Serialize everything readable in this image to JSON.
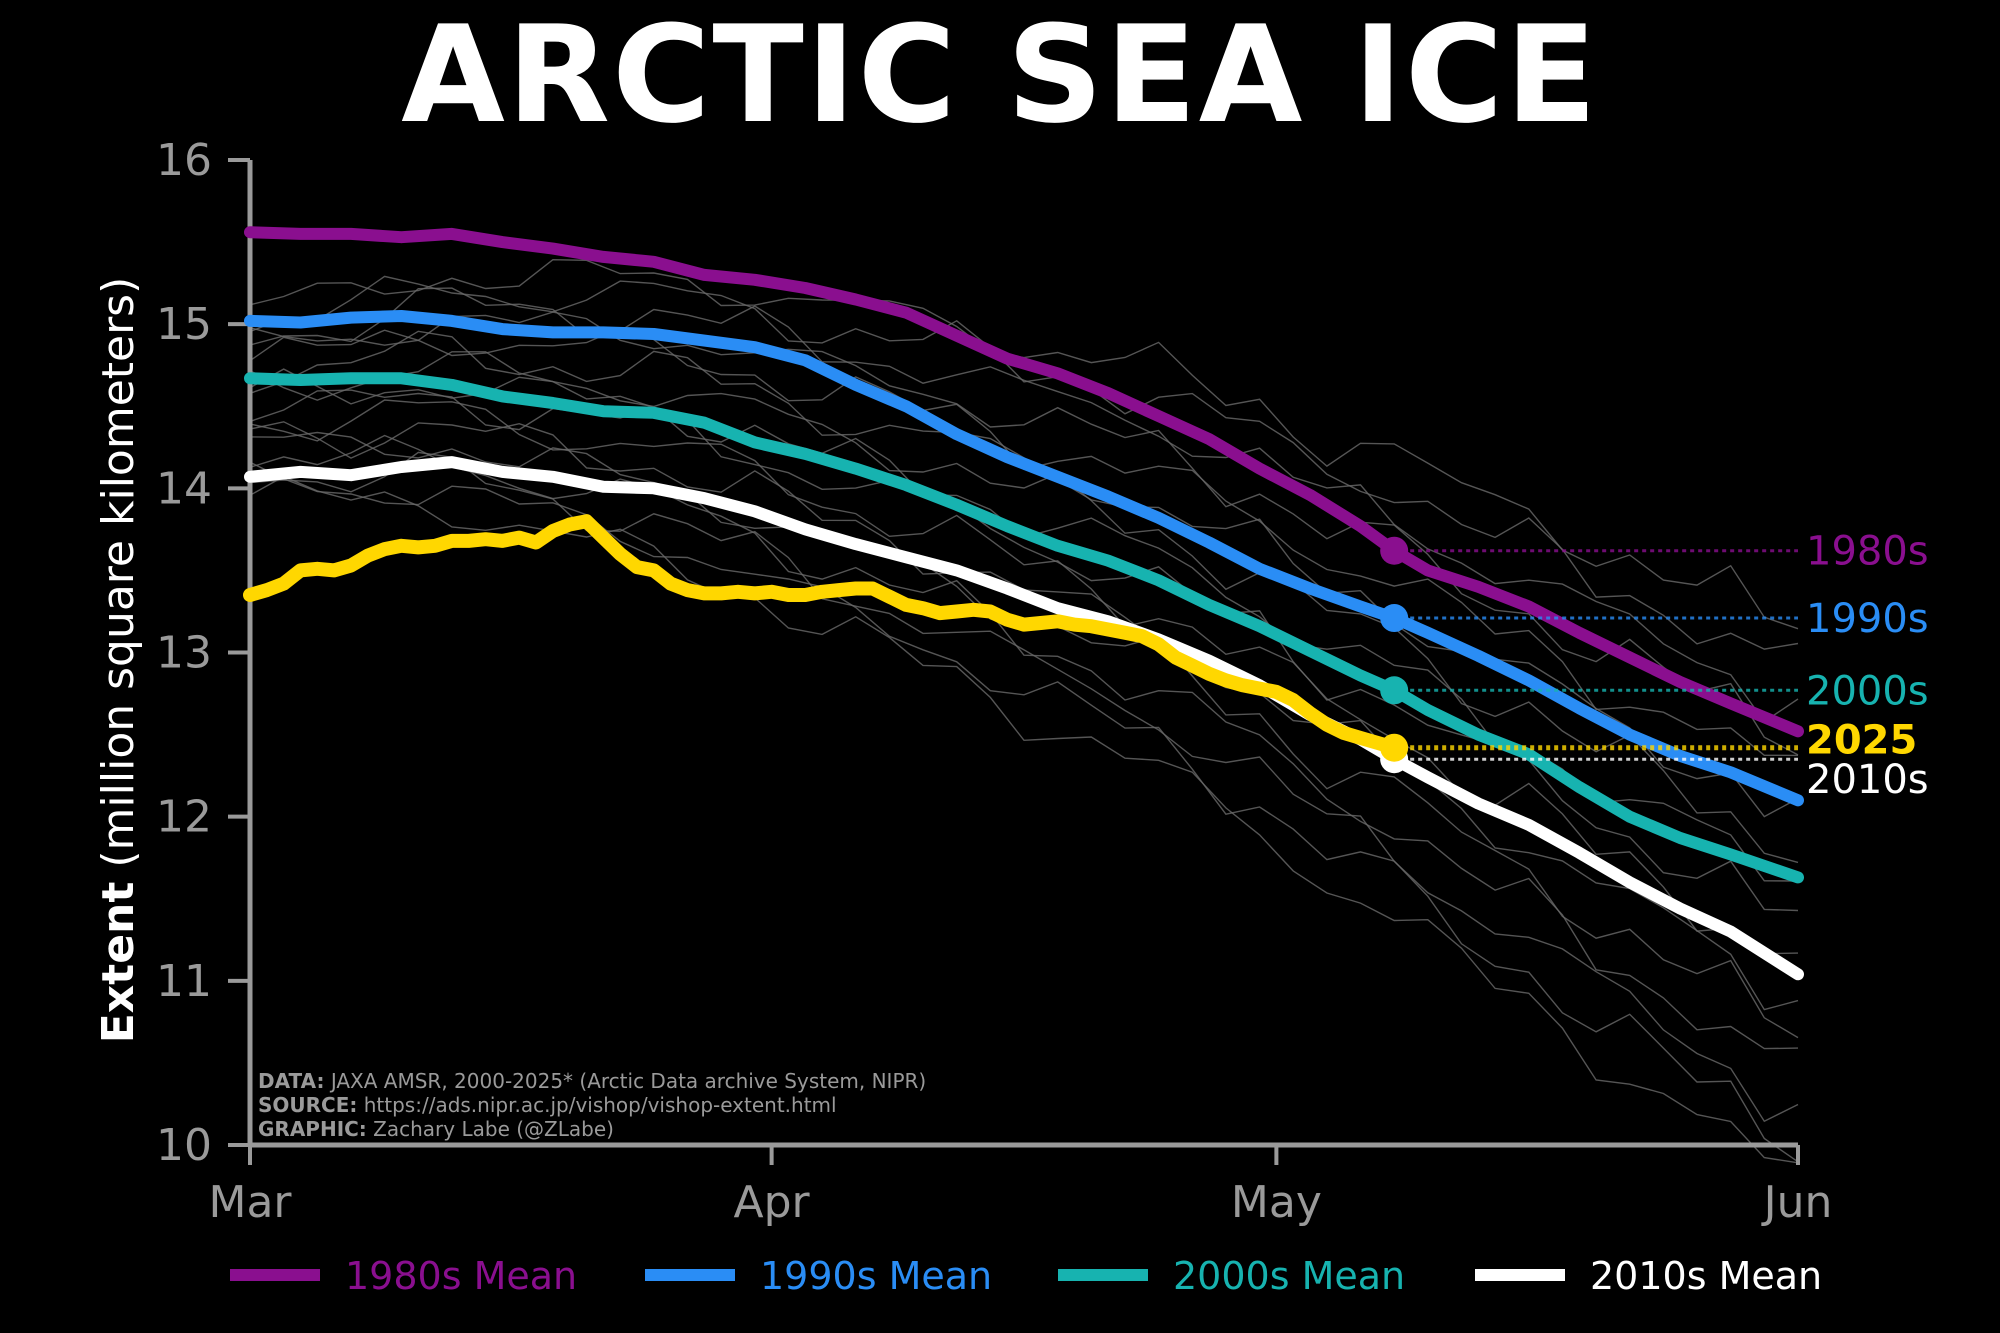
{
  "chart_data": {
    "type": "line",
    "title": "ARCTIC SEA ICE",
    "ylabel_bold": "Extent",
    "ylabel_rest": "(million square kilometers)",
    "ylim": [
      10,
      16
    ],
    "y_ticks": [
      10,
      11,
      12,
      13,
      14,
      15,
      16
    ],
    "x_ticks": [
      {
        "label": "Mar",
        "day": 0
      },
      {
        "label": "Apr",
        "day": 31
      },
      {
        "label": "May",
        "day": 61
      },
      {
        "label": "Jun",
        "day": 92
      }
    ],
    "xlim_days": [
      0,
      92
    ],
    "current_day": 68,
    "grid": false,
    "legend_position": "bottom",
    "series": [
      {
        "name": "1980s Mean",
        "end_label": "1980s",
        "color": "#8a0f8f",
        "x": [
          0,
          3,
          6,
          9,
          12,
          15,
          18,
          21,
          24,
          27,
          30,
          33,
          36,
          39,
          42,
          45,
          48,
          51,
          54,
          57,
          60,
          63,
          66,
          68,
          70,
          73,
          76,
          79,
          82,
          85,
          88,
          92
        ],
        "y": [
          15.56,
          15.55,
          15.55,
          15.53,
          15.55,
          15.5,
          15.46,
          15.41,
          15.38,
          15.3,
          15.27,
          15.22,
          15.15,
          15.07,
          14.93,
          14.79,
          14.7,
          14.58,
          14.44,
          14.3,
          14.12,
          13.96,
          13.77,
          13.62,
          13.5,
          13.4,
          13.28,
          13.12,
          12.97,
          12.82,
          12.69,
          12.52
        ]
      },
      {
        "name": "1990s Mean",
        "end_label": "1990s",
        "color": "#2a8df5",
        "x": [
          0,
          3,
          6,
          9,
          12,
          15,
          18,
          21,
          24,
          27,
          30,
          33,
          36,
          39,
          42,
          45,
          48,
          51,
          54,
          57,
          60,
          63,
          66,
          68,
          70,
          73,
          76,
          79,
          82,
          85,
          88,
          92
        ],
        "y": [
          15.02,
          15.01,
          15.04,
          15.05,
          15.02,
          14.97,
          14.95,
          14.95,
          14.94,
          14.9,
          14.86,
          14.78,
          14.63,
          14.5,
          14.33,
          14.19,
          14.07,
          13.95,
          13.82,
          13.67,
          13.51,
          13.39,
          13.28,
          13.21,
          13.12,
          12.98,
          12.83,
          12.66,
          12.5,
          12.37,
          12.27,
          12.1
        ]
      },
      {
        "name": "2000s Mean",
        "end_label": "2000s",
        "color": "#17b3b0",
        "x": [
          0,
          3,
          6,
          9,
          12,
          15,
          18,
          21,
          24,
          27,
          30,
          33,
          36,
          39,
          42,
          45,
          48,
          51,
          54,
          57,
          60,
          63,
          66,
          68,
          70,
          73,
          76,
          79,
          82,
          85,
          88,
          92
        ],
        "y": [
          14.67,
          14.66,
          14.67,
          14.67,
          14.63,
          14.56,
          14.52,
          14.47,
          14.46,
          14.4,
          14.28,
          14.21,
          14.12,
          14.02,
          13.9,
          13.77,
          13.65,
          13.56,
          13.44,
          13.29,
          13.16,
          13.01,
          12.86,
          12.77,
          12.65,
          12.5,
          12.38,
          12.18,
          12.0,
          11.87,
          11.77,
          11.63
        ]
      },
      {
        "name": "2010s Mean",
        "end_label": "2010s",
        "color": "#ffffff",
        "x": [
          0,
          3,
          6,
          9,
          12,
          15,
          18,
          21,
          24,
          27,
          30,
          33,
          36,
          39,
          42,
          45,
          48,
          51,
          54,
          57,
          60,
          63,
          66,
          68,
          70,
          73,
          76,
          79,
          82,
          85,
          88,
          92
        ],
        "y": [
          14.07,
          14.1,
          14.08,
          14.13,
          14.16,
          14.1,
          14.07,
          14.01,
          14.0,
          13.94,
          13.86,
          13.75,
          13.66,
          13.58,
          13.5,
          13.39,
          13.27,
          13.19,
          13.08,
          12.95,
          12.8,
          12.62,
          12.47,
          12.35,
          12.24,
          12.08,
          11.95,
          11.78,
          11.6,
          11.44,
          11.3,
          11.04
        ]
      },
      {
        "name": "2025",
        "end_label": "2025",
        "color": "#ffd700",
        "x": [
          0,
          1,
          2,
          3,
          4,
          5,
          6,
          7,
          8,
          9,
          10,
          11,
          12,
          13,
          14,
          15,
          16,
          17,
          18,
          19,
          20,
          21,
          22,
          23,
          24,
          25,
          26,
          27,
          28,
          29,
          30,
          31,
          32,
          33,
          34,
          35,
          36,
          37,
          38,
          39,
          40,
          41,
          42,
          43,
          44,
          45,
          46,
          47,
          48,
          49,
          50,
          51,
          52,
          53,
          54,
          55,
          56,
          57,
          58,
          59,
          60,
          61,
          62,
          63,
          64,
          65,
          66,
          67,
          68
        ],
        "y": [
          13.35,
          13.38,
          13.42,
          13.5,
          13.51,
          13.5,
          13.53,
          13.59,
          13.63,
          13.65,
          13.64,
          13.65,
          13.68,
          13.68,
          13.69,
          13.68,
          13.7,
          13.67,
          13.74,
          13.78,
          13.8,
          13.7,
          13.6,
          13.52,
          13.5,
          13.42,
          13.38,
          13.36,
          13.36,
          13.37,
          13.36,
          13.37,
          13.35,
          13.35,
          13.37,
          13.38,
          13.39,
          13.39,
          13.34,
          13.29,
          13.27,
          13.24,
          13.25,
          13.26,
          13.25,
          13.2,
          13.17,
          13.18,
          13.19,
          13.17,
          13.16,
          13.14,
          13.12,
          13.1,
          13.05,
          12.97,
          12.92,
          12.87,
          12.83,
          12.8,
          12.78,
          12.76,
          12.71,
          12.63,
          12.56,
          12.51,
          12.48,
          12.45,
          12.42
        ]
      }
    ],
    "annotations": [
      "DATA: JAXA AMSR, 2000-2025* (Arctic Data archive System, NIPR)",
      "SOURCE: https://ads.nipr.ac.jp/vishop/vishop-extent.html",
      "GRAPHIC: Zachary Labe (@ZLabe)"
    ]
  },
  "source": {
    "data_label": "DATA:",
    "data_text": " JAXA AMSR, 2000-2025* (Arctic Data archive System, NIPR)",
    "source_label": "SOURCE:",
    "source_text": " https://ads.nipr.ac.jp/vishop/vishop-extent.html",
    "graphic_label": "GRAPHIC:",
    "graphic_text": " Zachary Labe (@ZLabe)"
  },
  "colors": {
    "background": "#000000",
    "axis": "#9a9a9a",
    "individual_years": "#6a6a6a"
  }
}
